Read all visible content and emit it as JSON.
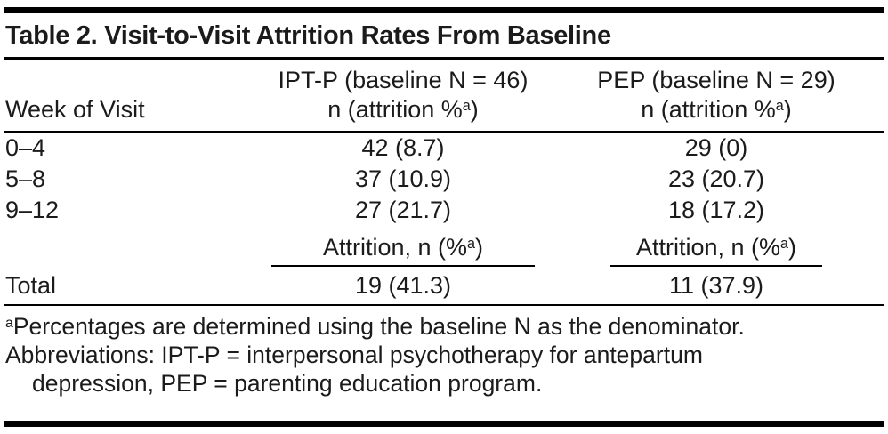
{
  "title": "Table 2. Visit-to-Visit Attrition Rates From Baseline",
  "superscript": "a",
  "header": {
    "week_label": "Week of Visit",
    "ipt_group": "IPT-P (baseline N = 46)",
    "pep_group": "PEP (baseline N = 29)",
    "sub_pre": "n (attrition %",
    "sub_post": ")"
  },
  "rows": [
    {
      "week": "0–4",
      "ipt": "42 (8.7)",
      "pep": "29 (0)"
    },
    {
      "week": "5–8",
      "ipt": "37 (10.9)",
      "pep": "23 (20.7)"
    },
    {
      "week": "9–12",
      "ipt": "27 (21.7)",
      "pep": "18 (17.2)"
    }
  ],
  "attrition": {
    "pre": "Attrition, n (%",
    "post": ")"
  },
  "total": {
    "label": "Total",
    "ipt": "19 (41.3)",
    "pep": "11 (37.9)"
  },
  "footnotes": {
    "note1": "Percentages are determined using the baseline N as the denominator.",
    "note2_line1": "Abbreviations: IPT-P = interpersonal psychotherapy for antepartum",
    "note2_line2": "depression, PEP = parenting education program."
  },
  "colors": {
    "text": "#1b1b1b",
    "rule": "#000000",
    "background": "#ffffff"
  }
}
